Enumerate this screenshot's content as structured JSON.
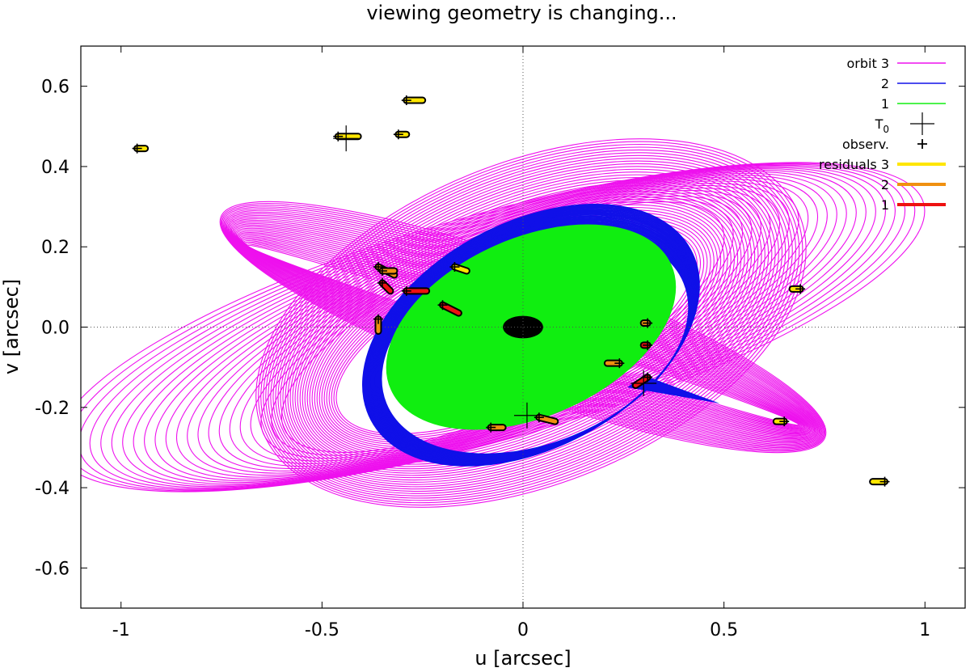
{
  "chart_data": {
    "type": "line",
    "title": "viewing geometry is changing...",
    "xlabel": "u [arcsec]",
    "ylabel": "v [arcsec]",
    "xlim": [
      -1.1,
      1.1
    ],
    "ylim": [
      -0.7,
      0.7
    ],
    "x_ticks": [
      -1,
      -0.5,
      0,
      0.5,
      1
    ],
    "y_ticks": [
      -0.6,
      -0.4,
      -0.2,
      0,
      0.2,
      0.4,
      0.6
    ],
    "zero_axes": "dotted",
    "legend_position": "top-right",
    "colors": {
      "orbit_3": "#ee10ee",
      "orbit_2": "#1010e8",
      "orbit_1": "#10ee10",
      "residuals_3": "#ffe600",
      "residuals_2": "#f09010",
      "residuals_1": "#ee1010",
      "center": "#000000"
    },
    "legend": [
      {
        "label": "orbit 3",
        "kind": "line",
        "color": "#ee10ee"
      },
      {
        "label": "2",
        "kind": "line",
        "color": "#1010e8"
      },
      {
        "label": "1",
        "kind": "line",
        "color": "#10ee10"
      },
      {
        "label": "T",
        "sub": "0",
        "kind": "big-plus",
        "color": "#000000"
      },
      {
        "label": "observ.",
        "kind": "plus",
        "color": "#000000"
      },
      {
        "label": "residuals 3",
        "kind": "thick",
        "color": "#ffe600"
      },
      {
        "label": "2",
        "kind": "thick",
        "color": "#f09010"
      },
      {
        "label": "1",
        "kind": "thick",
        "color": "#ee1010"
      }
    ],
    "series": [
      {
        "name": "orbit 3",
        "color": "#ee10ee",
        "description_ellipses": "precessing outer orbit, three ellipse families",
        "families": [
          {
            "a": [
              1.12,
              0.6
            ],
            "b": [
              0.28,
              0.2
            ],
            "ang": [
              -16,
              -25
            ],
            "cx": [
              -0.08,
              -0.05
            ],
            "cy": [
              0.0,
              0.0
            ],
            "n": 22
          },
          {
            "a": [
              0.72,
              0.48
            ],
            "b": [
              0.4,
              0.18
            ],
            "ang": [
              -22,
              -24
            ],
            "cx": [
              0.02,
              -0.02
            ],
            "cy": [
              0.01,
              -0.01
            ],
            "n": 34
          },
          {
            "a": [
              0.8,
              0.72
            ],
            "b": [
              0.16,
              0.02
            ],
            "ang": [
              20,
              18
            ],
            "cx": [
              0.0,
              0.0
            ],
            "cy": [
              0.0,
              -0.02
            ],
            "n": 30
          }
        ]
      },
      {
        "name": "2",
        "color": "#1010e8",
        "families": [
          {
            "a": [
              0.45,
              0.4
            ],
            "b": [
              0.28,
              0.25
            ],
            "ang": [
              -28,
              -22
            ],
            "cx": [
              0.02,
              0.03
            ],
            "cy": [
              -0.02,
              -0.04
            ],
            "n": 28
          }
        ]
      },
      {
        "name": "1",
        "color": "#10ee10",
        "filled_ellipse": {
          "cx": 0.02,
          "cy": 0.0,
          "a": 0.38,
          "b": 0.22,
          "ang": -24
        }
      }
    ],
    "center_blob": {
      "cx": 0.0,
      "cy": 0.0,
      "a": 0.05,
      "b": 0.028
    },
    "t0_markers": [
      [
        -0.44,
        0.47
      ],
      [
        0.01,
        -0.22
      ],
      [
        0.3,
        -0.14
      ]
    ],
    "observations": [
      {
        "u": -0.96,
        "v": 0.445,
        "res": "3",
        "dx": 0.02,
        "dy": 0.0
      },
      {
        "u": -0.46,
        "v": 0.475,
        "res": "3",
        "dx": 0.05,
        "dy": 0.0
      },
      {
        "u": -0.29,
        "v": 0.565,
        "res": "3",
        "dx": 0.04,
        "dy": 0.0
      },
      {
        "u": -0.31,
        "v": 0.48,
        "res": "3",
        "dx": 0.02,
        "dy": 0.0
      },
      {
        "u": -0.36,
        "v": 0.15,
        "res": "2",
        "dx": 0.04,
        "dy": -0.02
      },
      {
        "u": -0.35,
        "v": 0.14,
        "res": "2",
        "dx": 0.03,
        "dy": 0.0
      },
      {
        "u": -0.17,
        "v": 0.15,
        "res": "3",
        "dx": 0.03,
        "dy": -0.01
      },
      {
        "u": -0.29,
        "v": 0.09,
        "res": "1",
        "dx": 0.05,
        "dy": 0.0
      },
      {
        "u": -0.35,
        "v": 0.11,
        "res": "1",
        "dx": 0.02,
        "dy": -0.02
      },
      {
        "u": -0.2,
        "v": 0.055,
        "res": "1",
        "dx": 0.04,
        "dy": -0.02
      },
      {
        "u": -0.36,
        "v": 0.02,
        "res": "2",
        "dx": 0.0,
        "dy": -0.03
      },
      {
        "u": 0.31,
        "v": 0.01,
        "res": "2",
        "dx": -0.01,
        "dy": 0.0
      },
      {
        "u": 0.31,
        "v": -0.045,
        "res": "1",
        "dx": -0.01,
        "dy": 0.0
      },
      {
        "u": 0.24,
        "v": -0.09,
        "res": "2",
        "dx": -0.03,
        "dy": 0.0
      },
      {
        "u": 0.31,
        "v": -0.125,
        "res": "1",
        "dx": -0.03,
        "dy": -0.02
      },
      {
        "u": 0.69,
        "v": 0.095,
        "res": "3",
        "dx": -0.02,
        "dy": 0.0
      },
      {
        "u": 0.65,
        "v": -0.235,
        "res": "3",
        "dx": -0.02,
        "dy": 0.0
      },
      {
        "u": 0.9,
        "v": -0.385,
        "res": "3",
        "dx": -0.03,
        "dy": 0.0
      },
      {
        "u": -0.08,
        "v": -0.25,
        "res": "2",
        "dx": 0.03,
        "dy": 0.0
      },
      {
        "u": 0.04,
        "v": -0.225,
        "res": "2",
        "dx": 0.04,
        "dy": -0.01
      }
    ]
  }
}
